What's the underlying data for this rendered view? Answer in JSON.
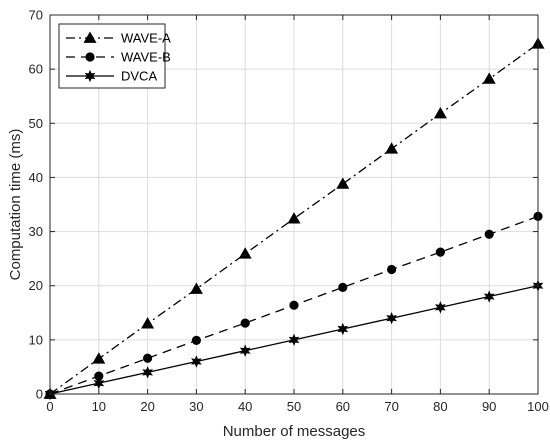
{
  "chart_data": {
    "type": "line",
    "xlabel": "Number of messages",
    "ylabel": "Computation time (ms)",
    "xlim": [
      0,
      100
    ],
    "ylim": [
      0,
      70
    ],
    "xticks": [
      0,
      10,
      20,
      30,
      40,
      50,
      60,
      70,
      80,
      90,
      100
    ],
    "yticks": [
      0,
      10,
      20,
      30,
      40,
      50,
      60,
      70
    ],
    "grid": true,
    "legend_position": "top-left",
    "x": [
      0,
      10,
      20,
      30,
      40,
      50,
      60,
      70,
      80,
      90,
      100
    ],
    "series": [
      {
        "name": "WAVE-A",
        "marker": "triangle",
        "line_style": "dash-dot",
        "values": [
          0,
          6.5,
          13,
          19.4,
          25.9,
          32.4,
          38.8,
          45.3,
          51.8,
          58.2,
          64.7
        ]
      },
      {
        "name": "WAVE-B",
        "marker": "circle",
        "line_style": "dashed",
        "values": [
          0,
          3.3,
          6.6,
          9.9,
          13.1,
          16.4,
          19.7,
          23.0,
          26.2,
          29.5,
          32.8
        ]
      },
      {
        "name": "DVCA",
        "marker": "hexagram",
        "line_style": "solid",
        "values": [
          0,
          2,
          4,
          6,
          8,
          10,
          12,
          14,
          16,
          18,
          20
        ]
      }
    ],
    "colors": {
      "lines": "#000000",
      "grid": "#dcdcdc",
      "axes": "#262626"
    }
  }
}
